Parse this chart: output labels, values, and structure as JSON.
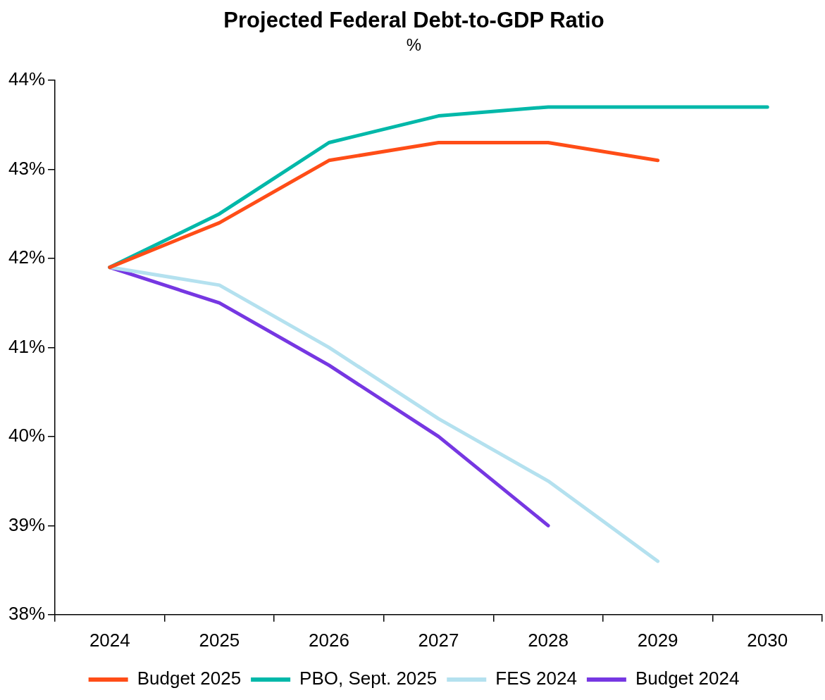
{
  "chart_data": {
    "type": "line",
    "title": "Projected Federal Debt-to-GDP Ratio",
    "subtitle": "%",
    "categories": [
      "2024",
      "2025",
      "2026",
      "2027",
      "2028",
      "2029",
      "2030"
    ],
    "series": [
      {
        "name": "Budget 2025",
        "color": "#ff4d17",
        "values": [
          41.9,
          42.4,
          43.1,
          43.3,
          43.3,
          43.1,
          null
        ]
      },
      {
        "name": "PBO, Sept. 2025",
        "color": "#00b8a9",
        "values": [
          41.9,
          42.5,
          43.3,
          43.6,
          43.7,
          43.7,
          43.7
        ]
      },
      {
        "name": "FES 2024",
        "color": "#b4e1ef",
        "values": [
          41.9,
          41.7,
          41.0,
          40.2,
          39.5,
          38.6,
          null
        ]
      },
      {
        "name": "Budget 2024",
        "color": "#7637e2",
        "values": [
          41.9,
          41.5,
          40.8,
          40.0,
          39.0,
          null,
          null
        ]
      }
    ],
    "ylim": [
      38,
      44
    ],
    "yticks": [
      {
        "value": 38,
        "label": "38%"
      },
      {
        "value": 39,
        "label": "39%"
      },
      {
        "value": 40,
        "label": "40%"
      },
      {
        "value": 41,
        "label": "41%"
      },
      {
        "value": 42,
        "label": "42%"
      },
      {
        "value": 43,
        "label": "43%"
      },
      {
        "value": 44,
        "label": "44%"
      }
    ],
    "grid": false,
    "legend": "bottom",
    "marker": "none",
    "line_style": "solid"
  }
}
